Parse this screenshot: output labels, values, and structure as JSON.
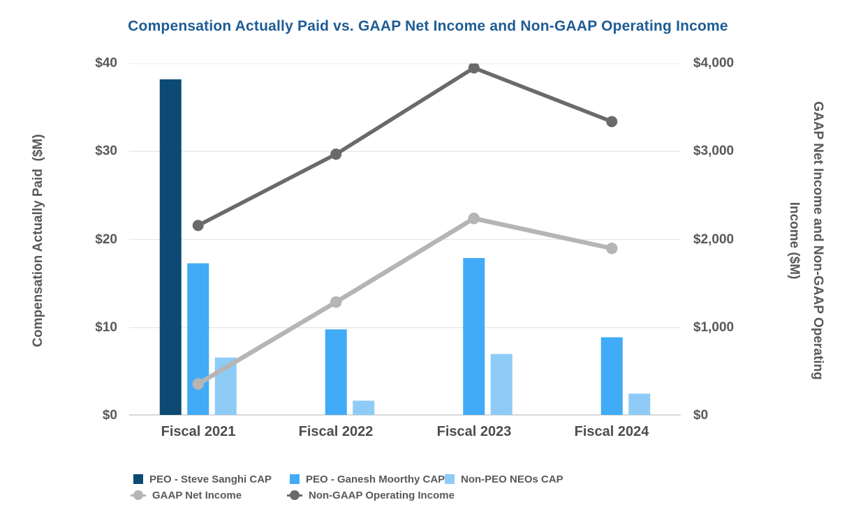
{
  "title": "Compensation Actually Paid vs. GAAP Net Income and Non-GAAP Operating Income",
  "axes": {
    "left_title": "Compensation Actually Paid  ($M)",
    "right_title_line1": "GAAP Net Income and Non-GAAP Operating",
    "right_title_line2": "Income ($M)",
    "left_ticks": [
      "$40",
      "$30",
      "$20",
      "$10",
      "$0"
    ],
    "right_ticks": [
      "$4,000",
      "$3,000",
      "$2,000",
      "$1,000",
      "$0"
    ]
  },
  "chart_data": {
    "type": "bar+line combo",
    "title": "Compensation Actually Paid vs. GAAP Net Income and Non-GAAP Operating Income",
    "categories": [
      "Fiscal 2021",
      "Fiscal 2022",
      "Fiscal 2023",
      "Fiscal 2024"
    ],
    "left_axis": {
      "label": "Compensation Actually Paid ($M)",
      "min": 0,
      "max": 40,
      "step": 10
    },
    "right_axis": {
      "label": "GAAP Net Income and Non-GAAP Operating Income ($M)",
      "min": 0,
      "max": 4000,
      "step": 1000
    },
    "grid": true,
    "legend_position": "bottom",
    "bar_series": [
      {
        "name": "PEO - Steve Sanghi CAP",
        "axis": "left",
        "color": "#0D4A73",
        "values": [
          38.2,
          null,
          null,
          null
        ]
      },
      {
        "name": "PEO - Ganesh Moorthy CAP",
        "axis": "left",
        "color": "#41ABF7",
        "values": [
          17.3,
          9.8,
          17.9,
          8.9
        ]
      },
      {
        "name": "Non-PEO NEOs CAP",
        "axis": "left",
        "color": "#8FCBF7",
        "values": [
          6.6,
          1.7,
          7.0,
          2.5
        ]
      }
    ],
    "line_series": [
      {
        "name": "GAAP Net Income",
        "axis": "right",
        "color": "#B5B5B5",
        "stroke_width": 6.5,
        "marker_radius": 8.3,
        "values": [
          360,
          1290,
          2240,
          1900
        ]
      },
      {
        "name": "Non-GAAP Operating Income",
        "axis": "right",
        "color": "#6A6A6A",
        "stroke_width": 5.5,
        "marker_radius": 8,
        "values": [
          2160,
          2970,
          3950,
          3340
        ]
      }
    ],
    "gridline_color": "#E9E9E9",
    "baseline_color": "#D9D9D9"
  },
  "legend": {
    "items_row1": [
      {
        "label": "PEO - Steve Sanghi CAP"
      },
      {
        "label": "PEO - Ganesh Moorthy CAP"
      },
      {
        "label": "Non-PEO NEOs CAP"
      }
    ],
    "items_row2": [
      {
        "label": "GAAP Net Income"
      },
      {
        "label": "Non-GAAP Operating Income"
      }
    ]
  }
}
